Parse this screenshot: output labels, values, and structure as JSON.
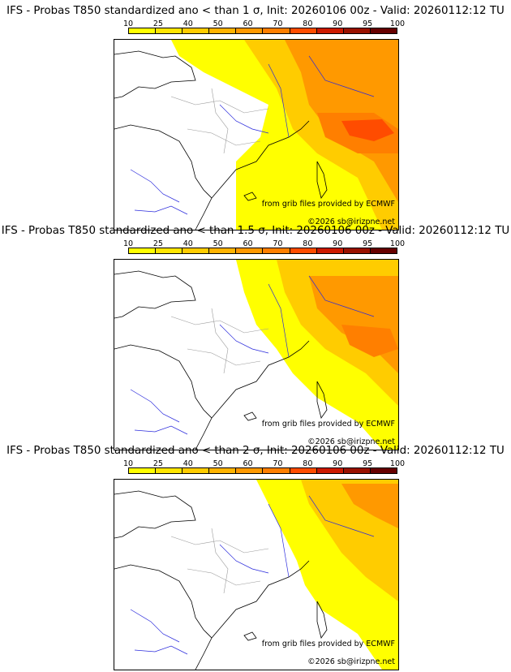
{
  "colorbar": {
    "ticks": [
      "10",
      "25",
      "40",
      "50",
      "60",
      "70",
      "80",
      "90",
      "95",
      "100"
    ],
    "colors": [
      "#ffff00",
      "#ffe500",
      "#ffcc00",
      "#ffb300",
      "#ff9900",
      "#ff7f00",
      "#ff4c00",
      "#cc1a00",
      "#991100",
      "#660000"
    ]
  },
  "panels": [
    {
      "title": "IFS - Probas T850  standardized ano < than 1 σ, Init: 20260106 00z - Valid: 20260112:12 TU",
      "credit_source": "from grib files provided by ECMWF",
      "credit_copyright": "©2026 sb@irizpne.net"
    },
    {
      "title": "IFS - Probas T850  standardized ano < than 1.5 σ, Init: 20260106 00z - Valid: 20260112:12 TU",
      "credit_source": "from grib files provided by ECMWF",
      "credit_copyright": "©2026 sb@irizpne.net"
    },
    {
      "title": "IFS - Probas T850  standardized ano < than 2 σ, Init: 20260106 00z - Valid: 20260112:12 TU",
      "credit_source": "from grib files provided by ECMWF",
      "credit_copyright": "©2026 sb@irizpne.net"
    }
  ]
}
